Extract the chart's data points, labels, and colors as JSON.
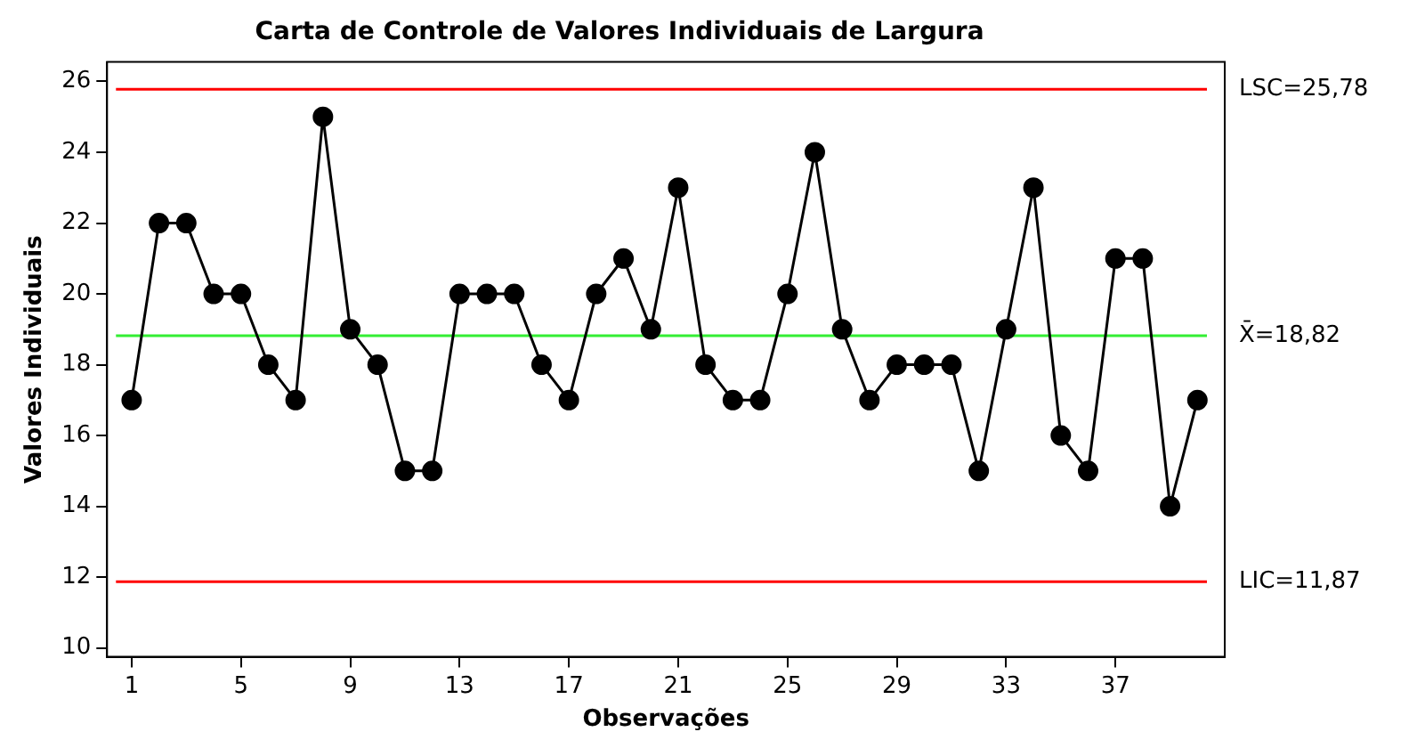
{
  "chart_data": {
    "type": "line",
    "title": "Carta de Controle de Valores Individuais de Largura",
    "xlabel": "Observações",
    "ylabel": "Valores Individuais",
    "x": [
      1,
      2,
      3,
      4,
      5,
      6,
      7,
      8,
      9,
      10,
      11,
      12,
      13,
      14,
      15,
      16,
      17,
      18,
      19,
      20,
      21,
      22,
      23,
      24,
      25,
      26,
      27,
      28,
      29,
      30,
      31,
      32,
      33,
      34,
      35,
      36,
      37,
      38,
      39,
      40
    ],
    "series": [
      {
        "color": "#000000",
        "values": [
          17,
          22,
          22,
          20,
          20,
          18,
          17,
          25,
          19,
          18,
          15,
          15,
          20,
          20,
          20,
          18,
          17,
          20,
          21,
          19,
          23,
          18,
          17,
          17,
          20,
          24,
          19,
          17,
          18,
          18,
          18,
          15,
          19,
          23,
          16,
          15,
          21,
          21,
          14,
          17
        ]
      }
    ],
    "xlim": [
      0.1,
      41
    ],
    "xticks": [
      1,
      5,
      9,
      13,
      17,
      21,
      25,
      29,
      33,
      37
    ],
    "ylim": [
      9.75,
      26.55
    ],
    "yticks": [
      10,
      12,
      14,
      16,
      18,
      20,
      22,
      24,
      26
    ],
    "ref_lines": [
      {
        "axis": "y",
        "value": 25.78,
        "label": "LSC=25,78",
        "color": "#ff0000"
      },
      {
        "axis": "y",
        "value": 18.82,
        "label": "X̄=18,82",
        "color": "#33ee33"
      },
      {
        "axis": "y",
        "value": 11.87,
        "label": "LIC=11,87",
        "color": "#ff0000"
      }
    ],
    "grid": false,
    "legend": false,
    "marker": "circle",
    "line_style": "solid"
  }
}
